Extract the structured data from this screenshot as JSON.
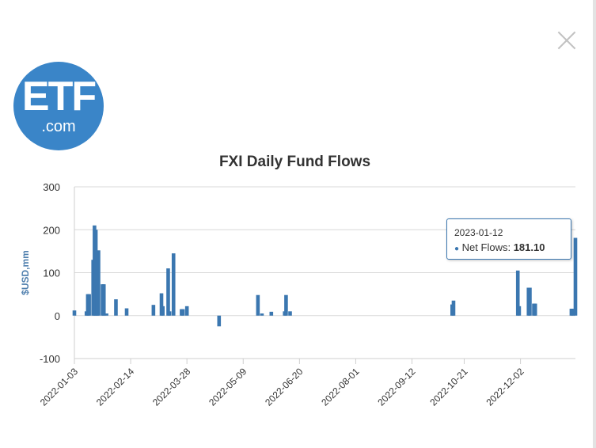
{
  "logo": {
    "main": "ETF",
    "sub": ".com"
  },
  "tooltip": {
    "date": "2023-01-12",
    "series_label": "Net Flows:",
    "value": "181.10"
  },
  "colors": {
    "bar": "#3b77b0",
    "logo": "#3a85c8",
    "axis_label": "#4f7fae"
  },
  "chart_data": {
    "type": "bar",
    "title": "FXI Daily Fund Flows",
    "ylabel": "$USD,mm",
    "xlabel": "",
    "ylim": [
      -100,
      300
    ],
    "yticks": [
      300,
      200,
      100,
      0,
      -100
    ],
    "grid": true,
    "xlim": [
      "2022-01-03",
      "2023-01-12"
    ],
    "xticks": [
      "2022-01-03",
      "2022-02-14",
      "2022-03-28",
      "2022-05-09",
      "2022-06-20",
      "2022-08-01",
      "2022-09-12",
      "2022-10-21",
      "2022-12-02"
    ],
    "series": [
      {
        "name": "Net Flows",
        "points": [
          [
            "2022-01-03",
            12
          ],
          [
            "2022-01-12",
            10
          ],
          [
            "2022-01-13",
            50
          ],
          [
            "2022-01-14",
            50
          ],
          [
            "2022-01-17",
            130
          ],
          [
            "2022-01-18",
            210
          ],
          [
            "2022-01-19",
            200
          ],
          [
            "2022-01-20",
            70
          ],
          [
            "2022-01-21",
            152
          ],
          [
            "2022-01-24",
            73
          ],
          [
            "2022-01-25",
            73
          ],
          [
            "2022-01-27",
            5
          ],
          [
            "2022-02-03",
            38
          ],
          [
            "2022-02-11",
            17
          ],
          [
            "2022-03-03",
            25
          ],
          [
            "2022-03-09",
            52
          ],
          [
            "2022-03-10",
            22
          ],
          [
            "2022-03-14",
            110
          ],
          [
            "2022-03-15",
            10
          ],
          [
            "2022-03-18",
            145
          ],
          [
            "2022-03-24",
            15
          ],
          [
            "2022-03-25",
            15
          ],
          [
            "2022-03-28",
            22
          ],
          [
            "2022-04-21",
            -25
          ],
          [
            "2022-05-20",
            48
          ],
          [
            "2022-05-23",
            5
          ],
          [
            "2022-05-30",
            9
          ],
          [
            "2022-06-09",
            10
          ],
          [
            "2022-06-10",
            48
          ],
          [
            "2022-06-13",
            10
          ],
          [
            "2022-10-12",
            26
          ],
          [
            "2022-10-13",
            35
          ],
          [
            "2022-11-30",
            105
          ],
          [
            "2022-12-01",
            22
          ],
          [
            "2022-12-08",
            65
          ],
          [
            "2022-12-09",
            65
          ],
          [
            "2022-12-12",
            28
          ],
          [
            "2022-12-13",
            28
          ],
          [
            "2023-01-09",
            16
          ],
          [
            "2023-01-10",
            16
          ],
          [
            "2023-01-12",
            181.1
          ]
        ]
      }
    ]
  }
}
